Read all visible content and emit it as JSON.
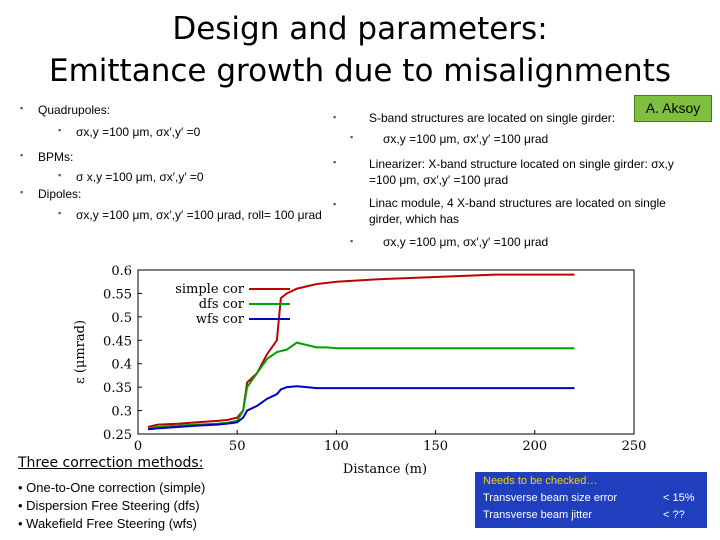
{
  "title_line1": "Design and parameters:",
  "title_line2": "Emittance growth due to misalignments",
  "author": "A. Aksoy",
  "left": {
    "quad_label": "Quadrupoles:",
    "quad_sub": "σx,y =100 μm, σx′,y′ =0",
    "bpm_label": "BPMs:",
    "bpm_sub": "σ  x,y =100 μm, σx′,y′ =0",
    "dip_label": "Dipoles:",
    "dip_sub": "σx,y =100 μm, σx′,y′ =100 μrad, roll= 100 μrad"
  },
  "right": {
    "sband": "S-band structures are located on single girder:",
    "sband_sub": "σx,y =100 μm,  σx′,y′ =100 μrad",
    "linearizer_a": "Linearizer: X-band structure located on single girder:   σx,y",
    "linearizer_b": "=100 μm, σx′,y′ =100 μrad",
    "linac_a": "Linac module, 4 X-band structures are located on single",
    "linac_b": "girder, which has",
    "linac_sub": "σx,y =100 μm, σx′,y′ =100 μrad"
  },
  "chart_data": {
    "type": "line",
    "xlabel": "Distance (m)",
    "ylabel": "ε (μmrad)",
    "xlim": [
      0,
      250
    ],
    "ylim": [
      0.25,
      0.6
    ],
    "xticks": [
      "0",
      "50",
      "100",
      "150",
      "200",
      "250"
    ],
    "yticks": [
      "0.25",
      "0.3",
      "0.35",
      "0.4",
      "0.45",
      "0.5",
      "0.55",
      "0.6"
    ],
    "legend": [
      "simple cor",
      "dfs cor",
      "wfs cor"
    ],
    "series": [
      {
        "name": "simple cor",
        "color": "#c00000",
        "x": [
          5,
          10,
          20,
          30,
          40,
          45,
          50,
          53,
          55,
          60,
          65,
          70,
          72,
          75,
          80,
          85,
          90,
          100,
          120,
          150,
          180,
          200,
          210,
          220
        ],
        "y": [
          0.265,
          0.27,
          0.272,
          0.275,
          0.278,
          0.28,
          0.285,
          0.3,
          0.36,
          0.38,
          0.42,
          0.45,
          0.54,
          0.55,
          0.56,
          0.565,
          0.57,
          0.575,
          0.58,
          0.585,
          0.59,
          0.59,
          0.59,
          0.59
        ]
      },
      {
        "name": "dfs cor",
        "color": "#00a000",
        "x": [
          5,
          10,
          20,
          30,
          40,
          45,
          50,
          53,
          55,
          60,
          65,
          70,
          75,
          80,
          85,
          90,
          95,
          100,
          120,
          150,
          180,
          200,
          210,
          220
        ],
        "y": [
          0.262,
          0.265,
          0.268,
          0.27,
          0.272,
          0.274,
          0.278,
          0.3,
          0.35,
          0.38,
          0.41,
          0.425,
          0.43,
          0.445,
          0.44,
          0.435,
          0.435,
          0.433,
          0.433,
          0.433,
          0.433,
          0.433,
          0.433,
          0.433
        ]
      },
      {
        "name": "wfs cor",
        "color": "#0000c0",
        "x": [
          5,
          10,
          20,
          30,
          40,
          45,
          50,
          53,
          55,
          60,
          65,
          70,
          72,
          75,
          80,
          85,
          90,
          100,
          120,
          150,
          180,
          200,
          210,
          220
        ],
        "y": [
          0.26,
          0.262,
          0.265,
          0.268,
          0.27,
          0.272,
          0.275,
          0.285,
          0.3,
          0.31,
          0.325,
          0.335,
          0.345,
          0.35,
          0.352,
          0.35,
          0.348,
          0.348,
          0.348,
          0.348,
          0.348,
          0.348,
          0.348,
          0.348
        ]
      }
    ]
  },
  "methods": {
    "title": "Three correction methods:",
    "m1": "• One-to-One correction (simple)",
    "m2": "• Dispersion Free  Steering (dfs)",
    "m3": "• Wakefield Free Steering (wfs)"
  },
  "notes": {
    "heading": "Needs to be checked…",
    "row1_label": "Transverse beam size error",
    "row1_value": "< 15%",
    "row2_label": "Transverse beam jitter",
    "row2_value": "< ??"
  }
}
